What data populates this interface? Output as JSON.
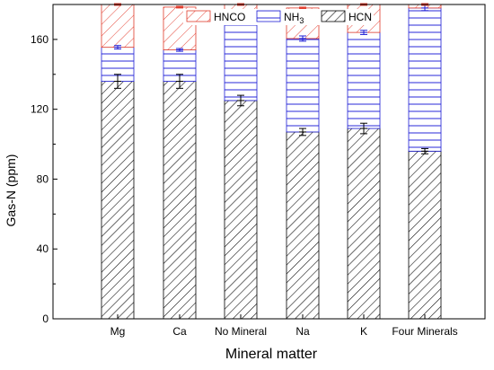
{
  "chart_data": {
    "type": "bar",
    "stacked": true,
    "title": "",
    "xlabel": "Mineral matter",
    "ylabel": "Gas-N (ppm)",
    "ylim": [
      0,
      180
    ],
    "yticks": [
      0,
      40,
      80,
      120,
      160
    ],
    "categories": [
      "Mg",
      "Ca",
      "No Mineral",
      "Na",
      "K",
      "Four Minerals"
    ],
    "series": [
      {
        "name": "HCN",
        "label_main": "HCN",
        "label_sub": "",
        "values": [
          136,
          136,
          125,
          107,
          109,
          96
        ],
        "errors": [
          4,
          4,
          3,
          2,
          3,
          1.5
        ],
        "color": "#000000",
        "pattern": "diagonal-hatch-fine"
      },
      {
        "name": "NH3",
        "label_main": "NH",
        "label_sub": "3",
        "values": [
          19.5,
          18,
          45,
          53.5,
          55,
          82
        ],
        "errors": [
          1,
          0.8,
          1.5,
          1.5,
          1.2,
          1.5
        ],
        "color": "#1f1fd6",
        "pattern": "horizontal-lines"
      },
      {
        "name": "HNCO",
        "label_main": "HNCO",
        "label_sub": "",
        "values": [
          24.5,
          24.5,
          10,
          17.5,
          16,
          2
        ],
        "errors": [
          0.5,
          0.5,
          0.5,
          0.5,
          0.5,
          0.5
        ],
        "color": "#e03a2a",
        "pattern": "diagonal-hatch"
      }
    ],
    "legend_position": "top-center",
    "grid": false
  }
}
